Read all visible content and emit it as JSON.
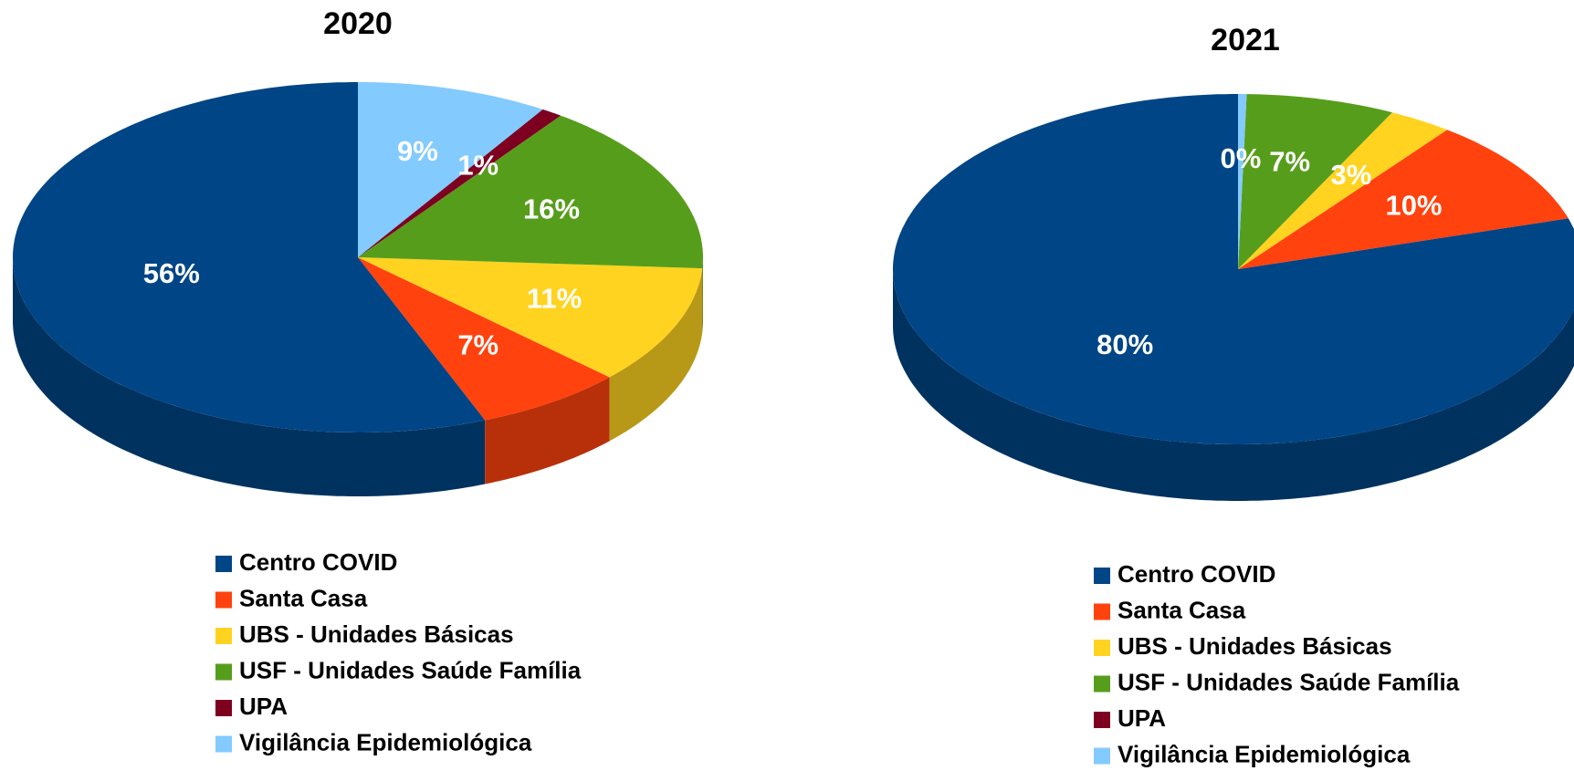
{
  "chart_data": [
    {
      "type": "pie",
      "title": "2020",
      "categories": [
        "Centro COVID",
        "Santa Casa",
        "UBS - Unidades Básicas",
        "USF - Unidades Saúde Família",
        "UPA",
        "Vigilância Epidemiológica"
      ],
      "values": [
        56,
        7,
        11,
        16,
        1,
        9
      ],
      "value_labels": [
        "56%",
        "7%",
        "11%",
        "16%",
        "1%",
        "9%"
      ],
      "colors": [
        "#004586",
        "#ff420e",
        "#ffd320",
        "#579d1c",
        "#7e0021",
        "#83caff"
      ]
    },
    {
      "type": "pie",
      "title": "2021",
      "categories": [
        "Centro COVID",
        "Santa Casa",
        "UBS - Unidades Básicas",
        "USF - Unidades Saúde Família",
        "UPA",
        "Vigilância Epidemiológica"
      ],
      "values": [
        80,
        10,
        3,
        7,
        0,
        0.4
      ],
      "value_labels": [
        "80%",
        "10%",
        "3%",
        "7%",
        null,
        "0%"
      ],
      "colors": [
        "#004586",
        "#ff420e",
        "#ffd320",
        "#579d1c",
        "#7e0021",
        "#83caff"
      ]
    }
  ]
}
